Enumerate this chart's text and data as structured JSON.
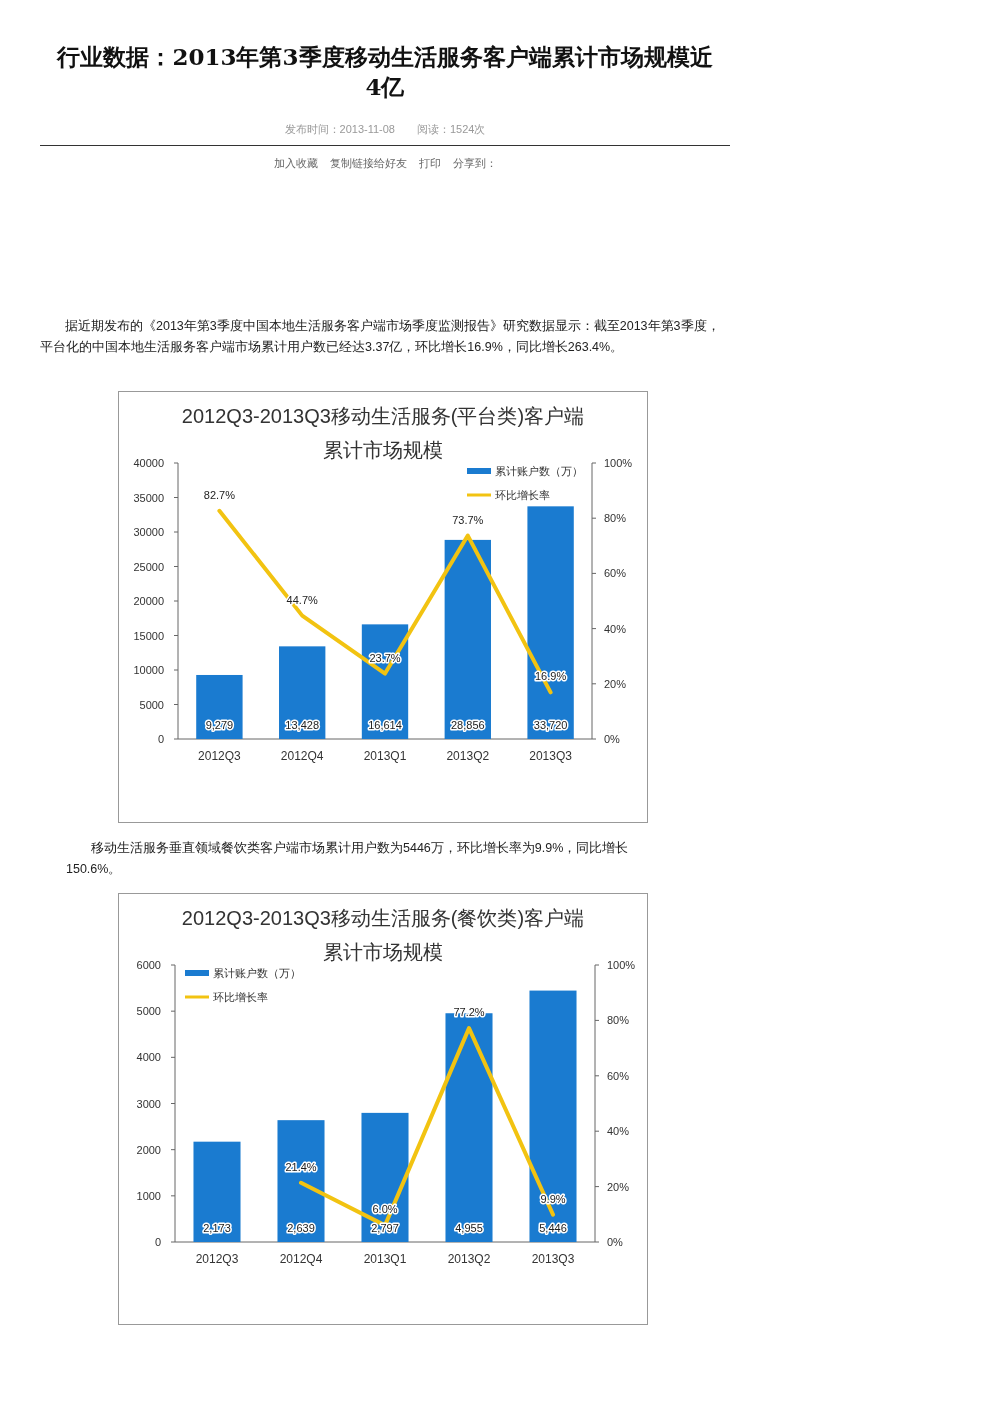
{
  "chart_data": [
    {
      "type": "other",
      "title": "行业数据：2013年第3季度移动生活服务客户端累计市场规模近4亿",
      "subtitle": "发布时间：2013-11-08　　阅读：1524次",
      "annotations": [
        "加入收藏",
        "复制链接给好友",
        "打印",
        "分享到：",
        "据近期发布的《2013年第3季度中国本地生活服务客户端市场季度监测报告》研究数据显示：截至2013年第3季度，平台化的中国本地生活服务客户端市场累计用户数已经达3.37亿，环比增长16.9%，同比增长263.4%。"
      ]
    },
    {
      "type": "bar",
      "title": "2012Q3-2013Q3移动生活服务(平台类)客户端累计市场规模",
      "categories": [
        "2012Q3",
        "2012Q4",
        "2013Q1",
        "2013Q2",
        "2013Q3"
      ],
      "ylim": [
        0,
        40000
      ],
      "yticks": [
        0,
        5000,
        10000,
        15000,
        20000,
        25000,
        30000,
        35000,
        40000
      ],
      "y2lim": [
        0,
        100
      ],
      "y2ticks": [
        {
          "value": 0,
          "label": "0%"
        },
        {
          "value": 20,
          "label": "20%"
        },
        {
          "value": 40,
          "label": "40%"
        },
        {
          "value": 60,
          "label": "60%"
        },
        {
          "value": 80,
          "label": "80%"
        },
        {
          "value": 100,
          "label": "100%"
        }
      ],
      "legend": "top right",
      "series": [
        {
          "name": "累计账户数（万）",
          "type": "bar",
          "color": "#1a7bd0",
          "values": [
            9279,
            13428,
            16614,
            28856,
            33720
          ],
          "value_labels": [
            "9,279",
            "13,428",
            "16,614",
            "28,856",
            "33,720"
          ]
        },
        {
          "name": "环比增长率",
          "type": "line",
          "axis": "y2",
          "color": "#f2c311",
          "values": [
            82.7,
            44.7,
            23.7,
            73.7,
            16.9
          ],
          "value_labels": [
            "82.7%",
            "44.7%",
            "23.7%",
            "73.7%",
            "16.9%"
          ]
        }
      ]
    },
    {
      "type": "other",
      "annotations": [
        "移动生活服务垂直领域餐饮类客户端市场累计用户数为5446万，环比增长率为9.9%，同比增长150.6%。"
      ]
    },
    {
      "type": "bar",
      "title": "2012Q3-2013Q3移动生活服务(餐饮类)客户端累计市场规模",
      "categories": [
        "2012Q3",
        "2012Q4",
        "2013Q1",
        "2013Q2",
        "2013Q3"
      ],
      "ylim": [
        0,
        6000
      ],
      "yticks": [
        0,
        1000,
        2000,
        3000,
        4000,
        5000,
        6000
      ],
      "y2lim": [
        0,
        100
      ],
      "y2ticks": [
        {
          "value": 0,
          "label": "0%"
        },
        {
          "value": 20,
          "label": "20%"
        },
        {
          "value": 40,
          "label": "40%"
        },
        {
          "value": 60,
          "label": "60%"
        },
        {
          "value": 80,
          "label": "80%"
        },
        {
          "value": 100,
          "label": "100%"
        }
      ],
      "legend": "top left",
      "series": [
        {
          "name": "累计账户数（万）",
          "type": "bar",
          "color": "#1a7bd0",
          "values": [
            2173,
            2639,
            2797,
            4955,
            5446
          ],
          "value_labels": [
            "2,173",
            "2,639",
            "2,797",
            "4,955",
            "5,446"
          ]
        },
        {
          "name": "环比增长率",
          "type": "line",
          "axis": "y2",
          "color": "#f2c311",
          "values": [
            null,
            21.4,
            6.0,
            77.2,
            9.9
          ],
          "value_labels": [
            null,
            "21.4%",
            "6.0%",
            "77.2%",
            "9.9%"
          ]
        }
      ]
    }
  ]
}
